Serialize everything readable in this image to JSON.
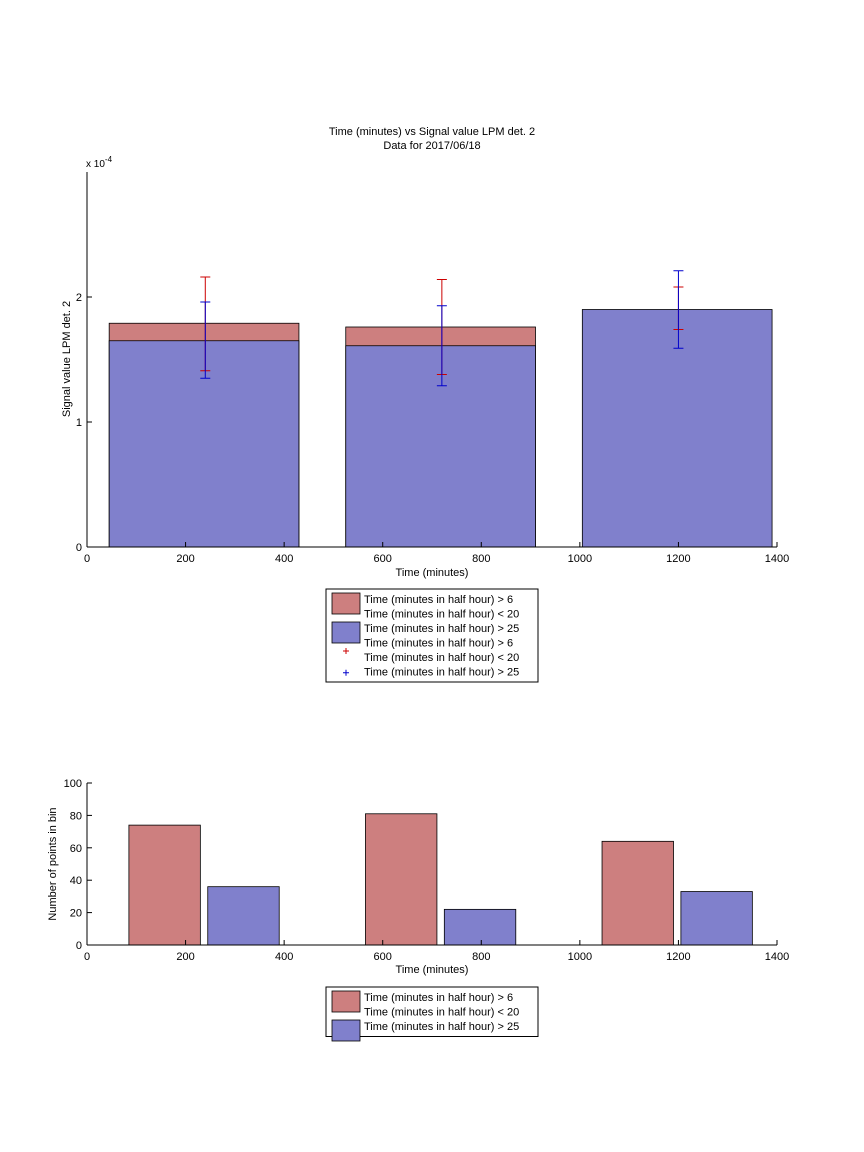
{
  "chart_data": [
    {
      "type": "bar",
      "title": "Time (minutes) vs Signal value LPM det. 2",
      "subtitle": "Data for 2017/06/18",
      "xlabel": "Time (minutes)",
      "ylabel": "Signal value LPM det. 2",
      "y_exponent_label": "x 10",
      "y_exponent_power": "-4",
      "xlim": [
        0,
        1400
      ],
      "ylim": [
        0,
        3.0
      ],
      "x_ticks": [
        0,
        200,
        400,
        600,
        800,
        1000,
        1200,
        1400
      ],
      "y_ticks": [
        0,
        1,
        2
      ],
      "bar_mode": "overlay",
      "bar_ranges": [
        [
          45,
          430
        ],
        [
          525,
          910
        ],
        [
          1005,
          1390
        ]
      ],
      "series": [
        {
          "name": "Time (minutes in half hour) > 6 Time (minutes in half hour) < 20",
          "color": "#cd7f7f",
          "values": [
            1.79,
            1.76,
            0
          ]
        },
        {
          "name": "Time (minutes in half hour) > 25",
          "color": "#8080cc",
          "values": [
            1.65,
            1.61,
            1.9
          ]
        }
      ],
      "error_bars": [
        {
          "name": "Time (minutes in half hour) > 6 Time (minutes in half hour) < 20",
          "color": "#cc0000",
          "x": [
            240,
            720,
            1200
          ],
          "low": [
            1.41,
            1.38,
            1.74
          ],
          "high": [
            2.16,
            2.14,
            2.08
          ]
        },
        {
          "name": "Time (minutes in half hour) > 25",
          "color": "#0000cc",
          "x": [
            240,
            720,
            1200
          ],
          "low": [
            1.35,
            1.29,
            1.59
          ],
          "high": [
            1.96,
            1.93,
            2.21
          ]
        }
      ],
      "legend": {
        "position": "below",
        "entries": [
          {
            "kind": "patch",
            "color": "#cd7f7f",
            "lines": [
              "Time (minutes in half hour) > 6",
              "Time (minutes in half hour) < 20"
            ]
          },
          {
            "kind": "patch",
            "color": "#8080cc",
            "lines": [
              "Time (minutes in half hour) > 25"
            ]
          },
          {
            "kind": "marker",
            "color": "#cc0000",
            "lines": [
              "Time (minutes in half hour) > 6",
              "Time (minutes in half hour) < 20"
            ]
          },
          {
            "kind": "marker",
            "color": "#0000cc",
            "lines": [
              "Time (minutes in half hour) > 25"
            ]
          }
        ]
      }
    },
    {
      "type": "bar",
      "title": "",
      "xlabel": "Time (minutes)",
      "ylabel": "Number of points in bin",
      "xlim": [
        0,
        1400
      ],
      "ylim": [
        0,
        100
      ],
      "x_ticks": [
        0,
        200,
        400,
        600,
        800,
        1000,
        1200,
        1400
      ],
      "y_ticks": [
        0,
        20,
        40,
        60,
        80,
        100
      ],
      "bar_mode": "side",
      "bars": [
        {
          "series": 0,
          "range": [
            85,
            230
          ],
          "value": 74
        },
        {
          "series": 1,
          "range": [
            245,
            390
          ],
          "value": 36
        },
        {
          "series": 0,
          "range": [
            565,
            710
          ],
          "value": 81
        },
        {
          "series": 1,
          "range": [
            725,
            870
          ],
          "value": 22
        },
        {
          "series": 0,
          "range": [
            1045,
            1190
          ],
          "value": 64
        },
        {
          "series": 1,
          "range": [
            1205,
            1350
          ],
          "value": 33
        }
      ],
      "series": [
        {
          "name": "Time (minutes in half hour) > 6 Time (minutes in half hour) < 20",
          "color": "#cd7f7f"
        },
        {
          "name": "Time (minutes in half hour) > 25",
          "color": "#8080cc"
        }
      ],
      "legend": {
        "position": "below",
        "entries": [
          {
            "kind": "patch",
            "color": "#cd7f7f",
            "lines": [
              "Time (minutes in half hour) > 6",
              "Time (minutes in half hour) < 20"
            ]
          },
          {
            "kind": "patch",
            "color": "#8080cc",
            "lines": [
              "Time (minutes in half hour) > 25"
            ]
          }
        ]
      }
    }
  ]
}
